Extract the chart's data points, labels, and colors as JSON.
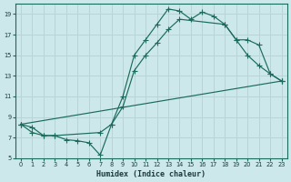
{
  "xlabel": "Humidex (Indice chaleur)",
  "bg_color": "#cde8ea",
  "grid_color": "#b8d4d6",
  "line_color": "#1a6b5a",
  "xlim": [
    -0.5,
    23.5
  ],
  "ylim": [
    5,
    20
  ],
  "yticks": [
    5,
    7,
    9,
    11,
    13,
    15,
    17,
    19
  ],
  "xticks": [
    0,
    1,
    2,
    3,
    4,
    5,
    6,
    7,
    8,
    9,
    10,
    11,
    12,
    13,
    14,
    15,
    16,
    17,
    18,
    19,
    20,
    21,
    22,
    23
  ],
  "line1_x": [
    0,
    1,
    2,
    3,
    4,
    5,
    6,
    7,
    8,
    9,
    10,
    11,
    12,
    13,
    14,
    15,
    16,
    17,
    18,
    19,
    20,
    21,
    22,
    23
  ],
  "line1_y": [
    8.3,
    8.0,
    7.2,
    7.2,
    6.8,
    6.7,
    6.5,
    5.3,
    8.3,
    11.0,
    15.0,
    16.5,
    18.0,
    19.5,
    19.3,
    18.5,
    19.2,
    18.8,
    18.0,
    16.5,
    15.0,
    14.0,
    13.2,
    12.5
  ],
  "line2_x": [
    0,
    1,
    2,
    3,
    7,
    8,
    9,
    10,
    11,
    12,
    13,
    14,
    18,
    19,
    20,
    21,
    22,
    23
  ],
  "line2_y": [
    8.3,
    7.5,
    7.2,
    7.2,
    7.5,
    8.3,
    10.0,
    13.5,
    15.0,
    16.2,
    17.5,
    18.5,
    18.0,
    16.5,
    16.5,
    16.0,
    13.2,
    12.5
  ],
  "line3_x": [
    0,
    23
  ],
  "line3_y": [
    8.3,
    12.5
  ]
}
